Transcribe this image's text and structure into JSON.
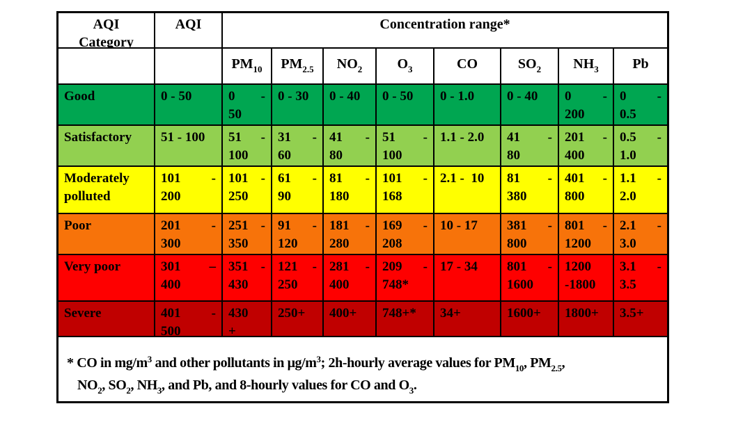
{
  "table": {
    "header": {
      "col1": "AQI Category",
      "col2": "AQI",
      "col3": "Concentration range*"
    },
    "pollutants": [
      {
        "base": "PM",
        "sub": "10"
      },
      {
        "base": "PM",
        "sub": "2.5"
      },
      {
        "base": "NO",
        "sub": "2"
      },
      {
        "base": "O",
        "sub": "3"
      },
      {
        "base": "CO",
        "sub": ""
      },
      {
        "base": "SO",
        "sub": "2"
      },
      {
        "base": "NH",
        "sub": "3"
      },
      {
        "base": "Pb",
        "sub": ""
      }
    ],
    "rows": [
      {
        "category": "Good",
        "bg": "#00A651",
        "cells": [
          [
            "0 - 50"
          ],
          [
            [
              "0",
              "-"
            ],
            "50"
          ],
          [
            "0 - 30"
          ],
          [
            "0 - 40"
          ],
          [
            "0 - 50"
          ],
          [
            "0 - 1.0"
          ],
          [
            "0 - 40"
          ],
          [
            [
              "0",
              "-"
            ],
            "200"
          ],
          [
            [
              "0",
              "-"
            ],
            "0.5"
          ]
        ]
      },
      {
        "category": "Satisfactory",
        "bg": "#92D050",
        "cells": [
          [
            "51 - 100"
          ],
          [
            [
              "51",
              "-"
            ],
            "100"
          ],
          [
            [
              "31",
              "-"
            ],
            "60"
          ],
          [
            [
              "41",
              "-"
            ],
            "80"
          ],
          [
            [
              "51",
              "-"
            ],
            "100"
          ],
          [
            "1.1 - 2.0"
          ],
          [
            [
              "41",
              "-"
            ],
            "80"
          ],
          [
            [
              "201",
              "-"
            ],
            "400"
          ],
          [
            [
              "0.5",
              "-"
            ],
            "1.0"
          ]
        ]
      },
      {
        "category": "Moderately polluted",
        "bg": "#FFFF00",
        "cells": [
          [
            [
              "101",
              "-"
            ],
            "200"
          ],
          [
            [
              "101",
              "-"
            ],
            "250"
          ],
          [
            [
              "61",
              "-"
            ],
            "90"
          ],
          [
            [
              "81",
              "-"
            ],
            "180"
          ],
          [
            [
              "101",
              "-"
            ],
            "168"
          ],
          [
            "2.1 -  10"
          ],
          [
            [
              "81",
              "-"
            ],
            "380"
          ],
          [
            [
              "401",
              "-"
            ],
            "800"
          ],
          [
            [
              "1.1",
              "-"
            ],
            "2.0"
          ]
        ]
      },
      {
        "category": "Poor",
        "bg": "#F7730A",
        "cells": [
          [
            [
              "201",
              "-"
            ],
            "300"
          ],
          [
            [
              "251",
              "-"
            ],
            "350"
          ],
          [
            [
              "91",
              "-"
            ],
            "120"
          ],
          [
            [
              "181",
              "-"
            ],
            "280"
          ],
          [
            [
              "169",
              "-"
            ],
            "208"
          ],
          [
            "10 - 17"
          ],
          [
            [
              "381",
              "-"
            ],
            "800"
          ],
          [
            [
              "801",
              "-"
            ],
            "1200"
          ],
          [
            [
              "2.1",
              "-"
            ],
            "3.0"
          ]
        ]
      },
      {
        "category": "Very poor",
        "bg": "#FE0000",
        "cells": [
          [
            [
              "301",
              "–"
            ],
            "400"
          ],
          [
            [
              "351",
              "-"
            ],
            "430"
          ],
          [
            [
              "121",
              "-"
            ],
            "250"
          ],
          [
            [
              "281",
              "-"
            ],
            "400"
          ],
          [
            [
              "209",
              "-"
            ],
            "748*"
          ],
          [
            "17 - 34"
          ],
          [
            [
              "801",
              "-"
            ],
            "1600"
          ],
          [
            "1200",
            "-1800"
          ],
          [
            [
              "3.1",
              "-"
            ],
            "3.5"
          ]
        ]
      },
      {
        "category": "Severe",
        "bg": "#C00000",
        "cells": [
          [
            [
              "401",
              "-"
            ],
            "500"
          ],
          [
            "430",
            "+"
          ],
          [
            "250+"
          ],
          [
            "400+"
          ],
          [
            "748+*"
          ],
          [
            "34+"
          ],
          [
            "1600+"
          ],
          [
            "1800+"
          ],
          [
            "3.5+"
          ]
        ]
      }
    ],
    "footnote": [
      [
        {
          "t": "* CO in mg/m"
        },
        {
          "sup": "3"
        },
        {
          "t": " and other pollutants in μg/m"
        },
        {
          "sup": "3"
        },
        {
          "t": "; 2h-hourly average values for PM"
        },
        {
          "sub": "10"
        },
        {
          "t": ", PM"
        },
        {
          "sub": "2.5"
        },
        {
          "t": ","
        }
      ],
      [
        {
          "t": "NO"
        },
        {
          "sub": "2"
        },
        {
          "t": ", SO"
        },
        {
          "sub": "2"
        },
        {
          "t": ", NH"
        },
        {
          "sub": "3"
        },
        {
          "t": ", and Pb, and 8-hourly values for CO and O"
        },
        {
          "sub": "3"
        },
        {
          "t": "."
        }
      ]
    ]
  },
  "colors": {
    "good": "#00A651",
    "satisfactory": "#92D050",
    "moderately_polluted": "#FFFF00",
    "poor": "#F7730A",
    "very_poor": "#FE0000",
    "severe": "#C00000",
    "border": "#000000",
    "text": "#000000",
    "background": "#FFFFFF"
  }
}
